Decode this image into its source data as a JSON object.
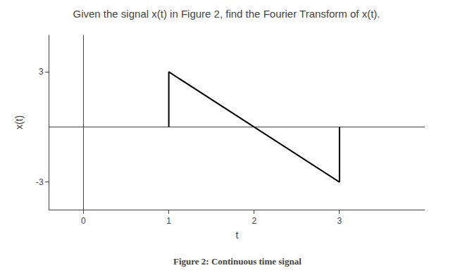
{
  "chart_data": {
    "type": "line",
    "title": "Given the signal x(t) in Figure 2, find the Fourier Transform of x(t).",
    "annotations": [
      "Figure 2: Continuous time signal"
    ],
    "x_label": "t",
    "y_label": "x(t)",
    "x": [
      1,
      1,
      3,
      3
    ],
    "values": [
      0,
      3,
      -3,
      0
    ],
    "color": "#000000",
    "xlim": [
      -0.4,
      4.0
    ],
    "ylim": [
      -4.5,
      5.0
    ],
    "xticks": [
      0,
      1,
      2,
      3
    ],
    "yticks": [
      -3,
      3
    ],
    "grid": false
  }
}
